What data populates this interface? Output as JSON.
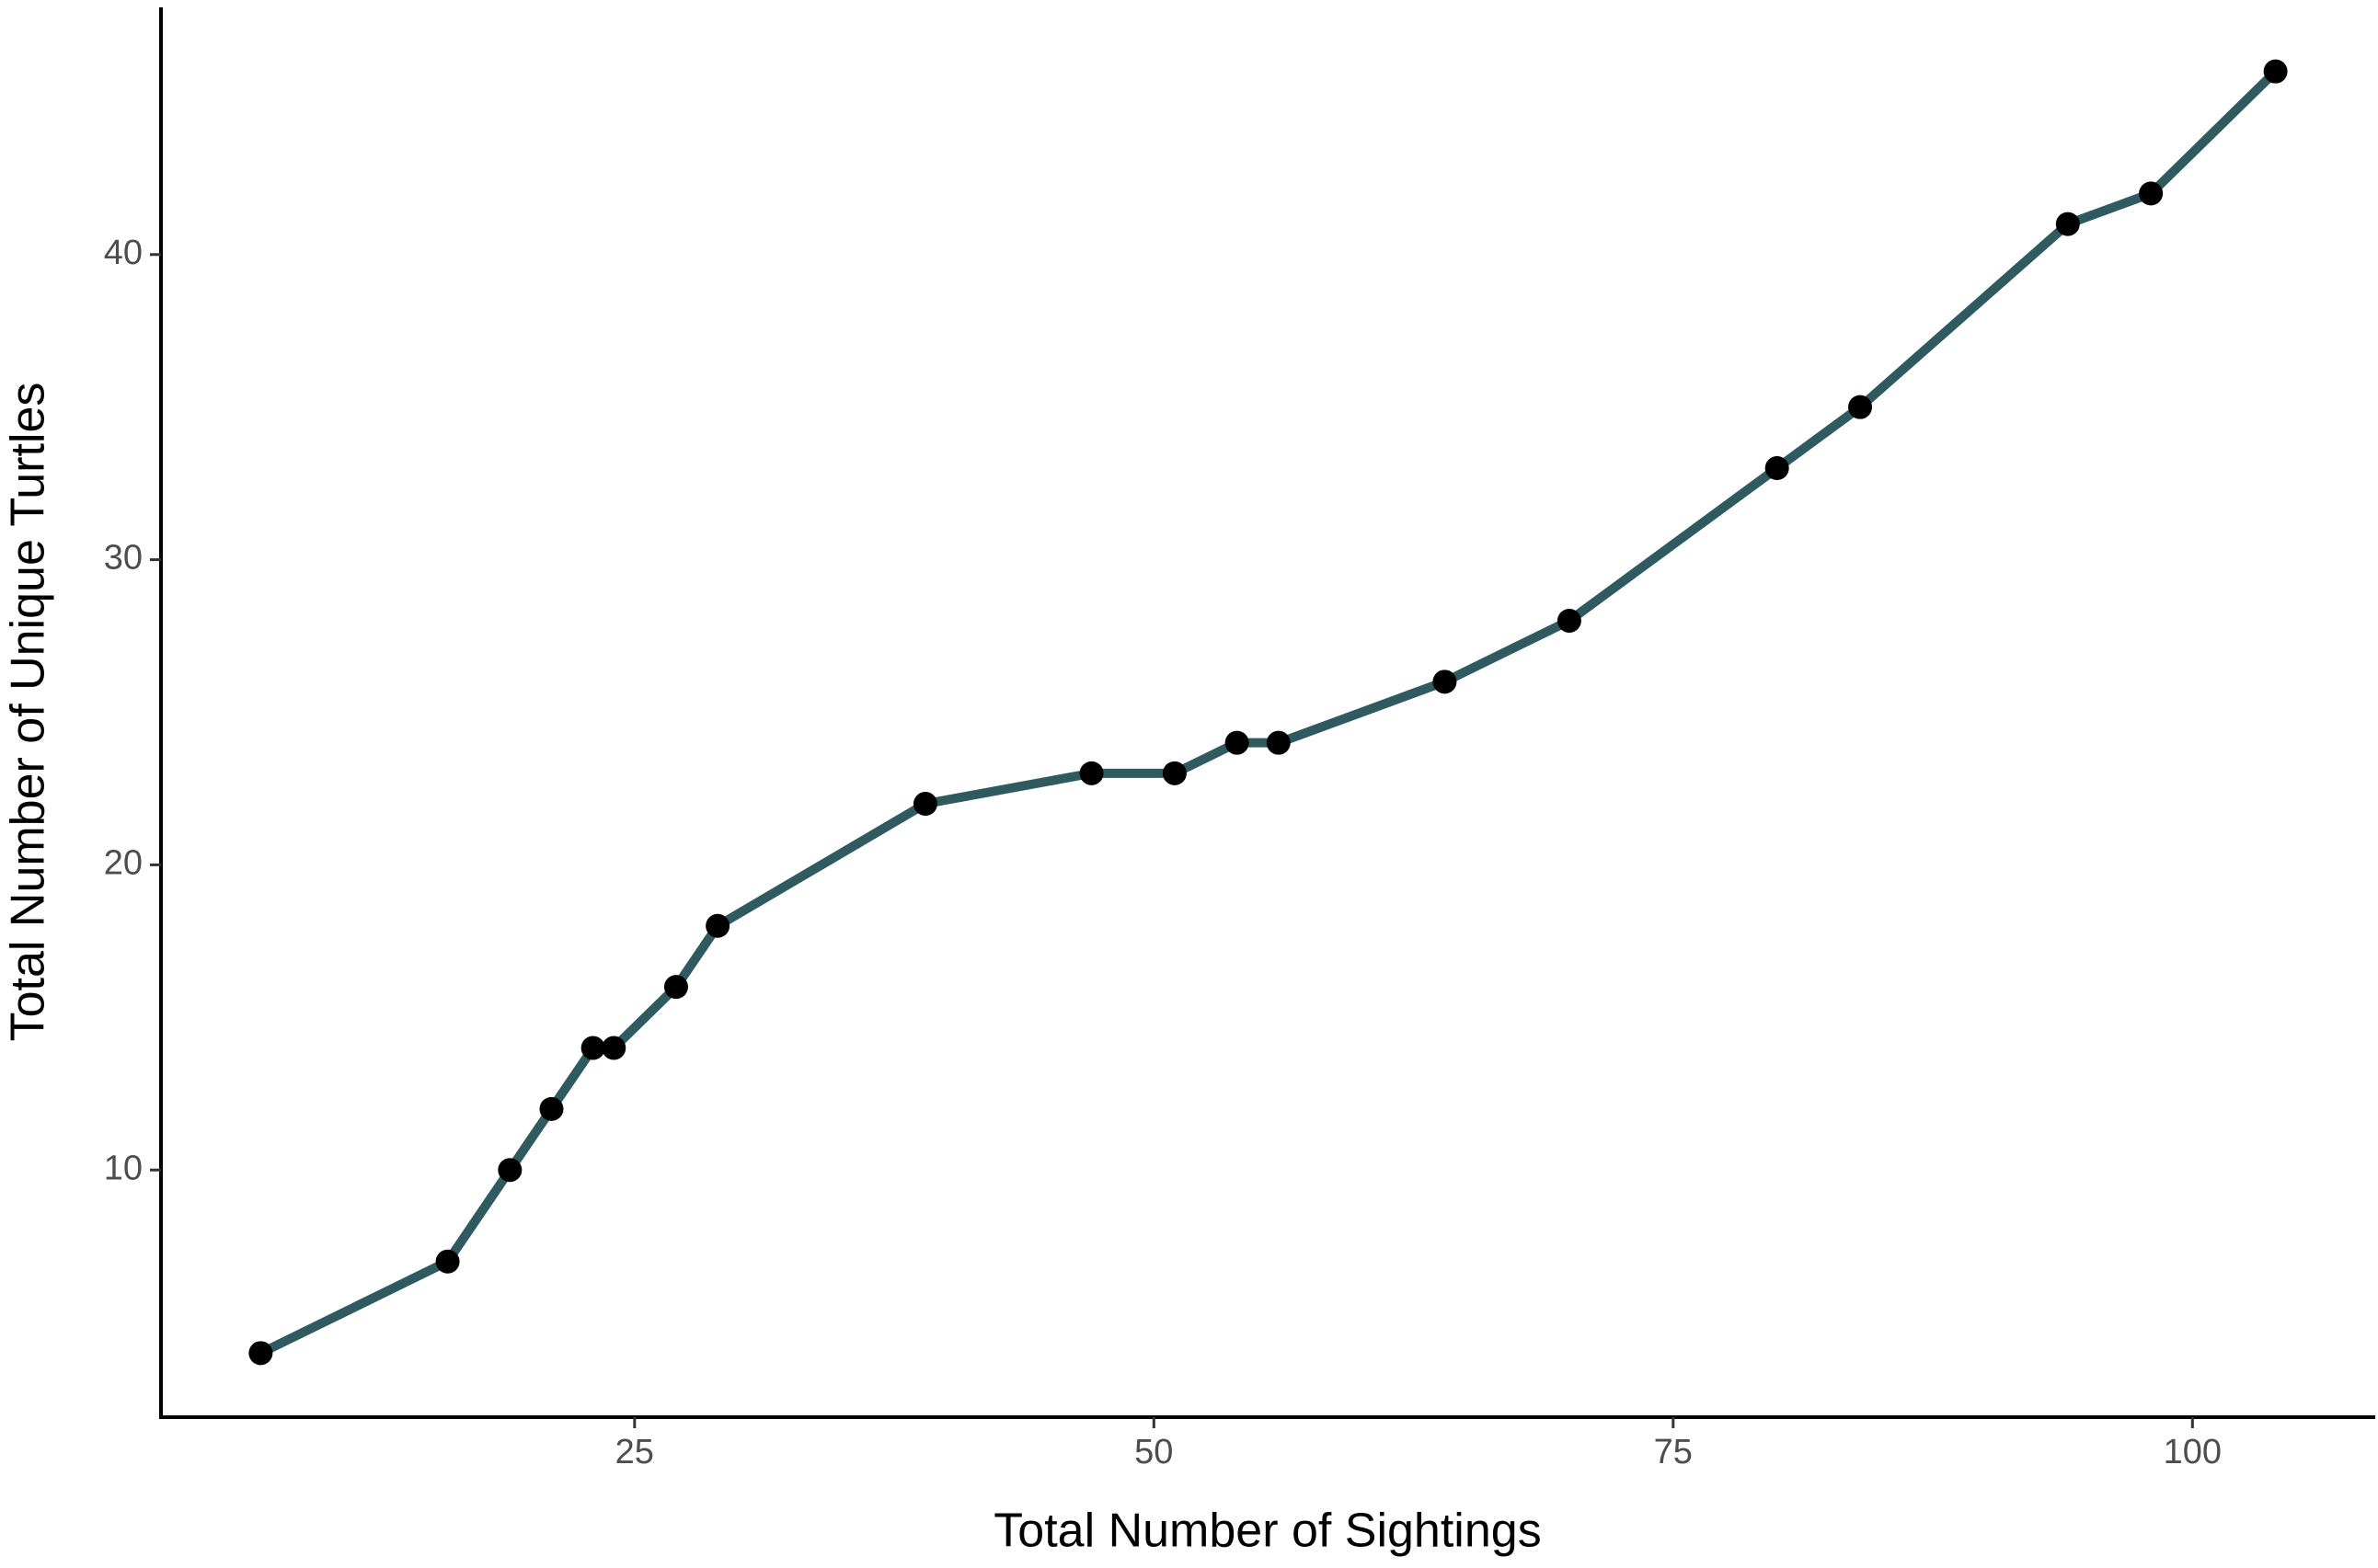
{
  "chart_data": {
    "type": "line",
    "x_label": "Total Number of Sightings",
    "y_label": "Total Number of Unique Turtles",
    "x": [
      7,
      16,
      19,
      21,
      23,
      24,
      27,
      29,
      39,
      47,
      51,
      54,
      56,
      64,
      70,
      80,
      84,
      94,
      98,
      104
    ],
    "series": [
      {
        "color": "#2f5a5f",
        "marker_color": "#000000",
        "values": [
          4,
          7,
          10,
          12,
          14,
          14,
          16,
          18,
          22,
          23,
          23,
          24,
          24,
          26,
          28,
          33,
          35,
          41,
          42,
          46
        ]
      }
    ],
    "xlim": [
      2.2,
      108.8
    ],
    "ylim": [
      1.9,
      48.1
    ],
    "xticks": [
      25,
      50,
      75,
      100
    ],
    "yticks": [
      10,
      20,
      30,
      40
    ],
    "grid": false
  }
}
